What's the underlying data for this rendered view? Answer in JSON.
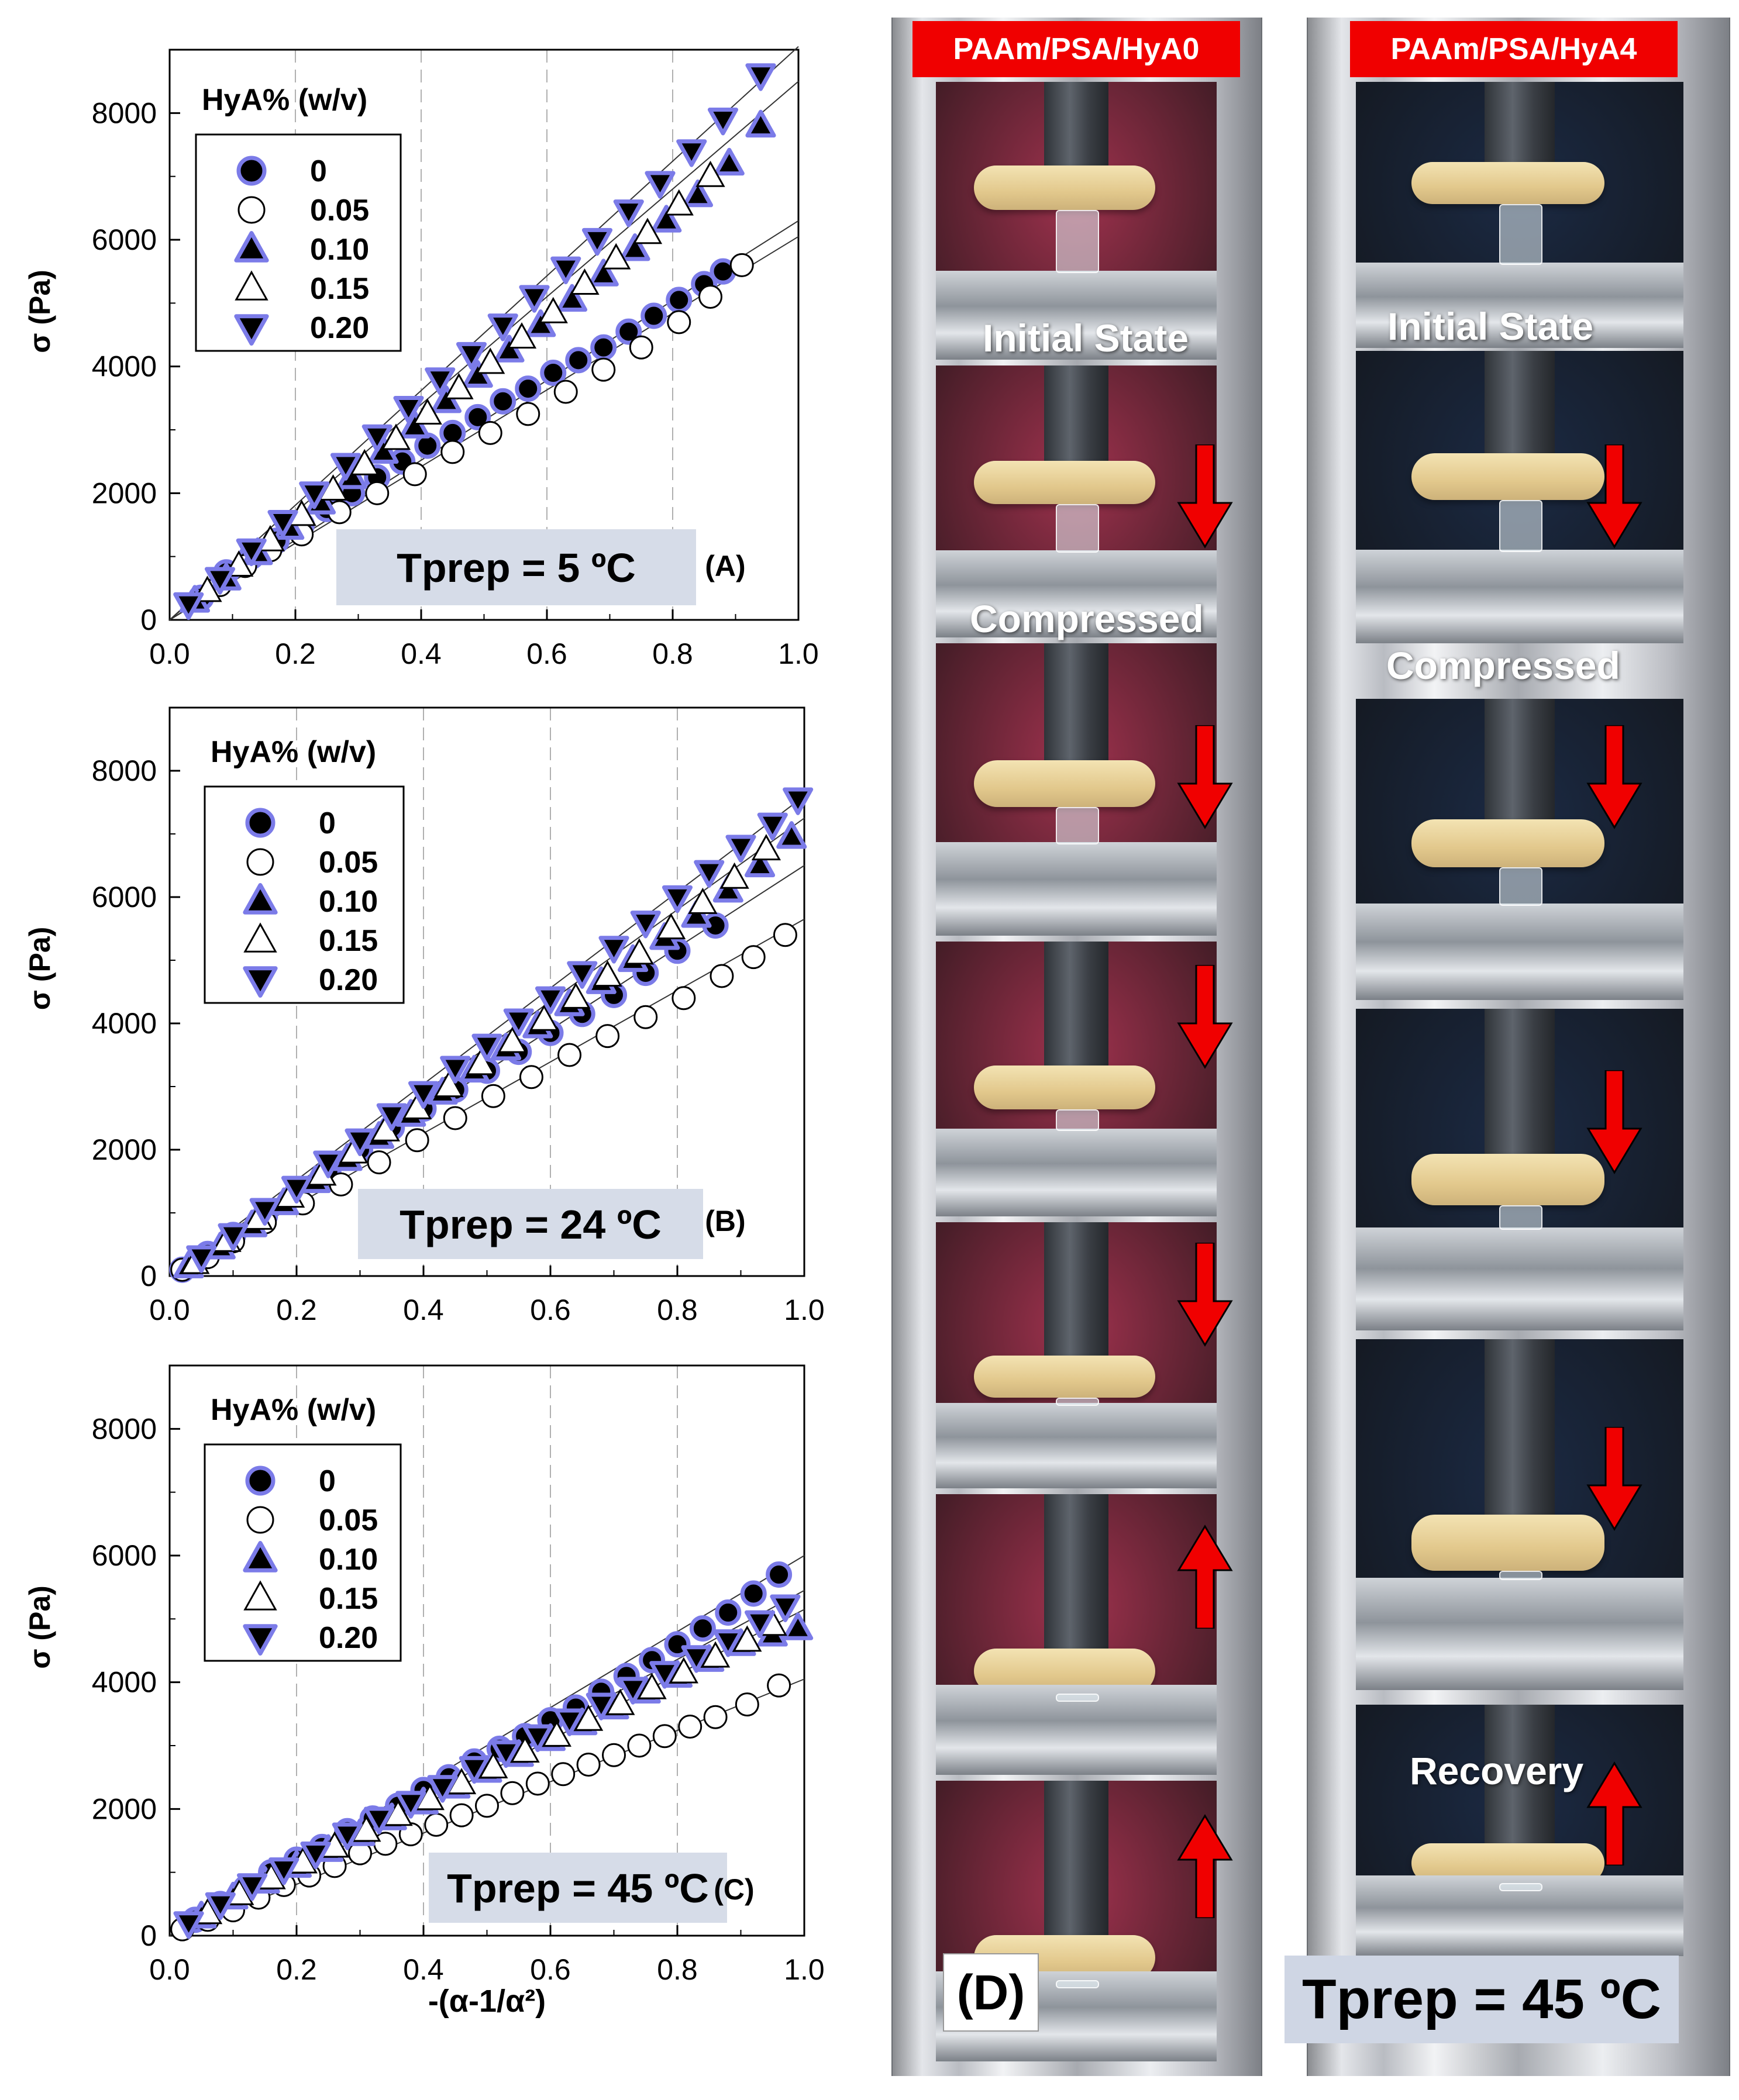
{
  "figure": {
    "legend_title": "HyA% (w/v)",
    "series_labels": [
      "0",
      "0.05",
      "0.10",
      "0.15",
      "0.20"
    ],
    "series_markers": [
      "circle-filled",
      "circle-open",
      "triangle-up-filled",
      "triangle-up-open",
      "triangle-down-filled"
    ],
    "marker_outline_color": "#7b7be8",
    "x_label": "-(α-1/α²)",
    "y_label": "σ (Pa)",
    "panel_label_bg": "#d6dce8"
  },
  "chart_data": [
    {
      "type": "scatter",
      "panel": "(A)",
      "annotation": "Tprep = 5 ºC",
      "xlim": [
        0,
        1.0
      ],
      "ylim": [
        0,
        9000
      ],
      "x_ticks": [
        "0.0",
        "0.2",
        "0.4",
        "0.6",
        "0.8",
        "1.0"
      ],
      "y_ticks": [
        "0",
        "2000",
        "4000",
        "6000",
        "8000"
      ],
      "x_gridlines": [
        0.2,
        0.4,
        0.6,
        0.8
      ],
      "legend_position": "top-left",
      "series": [
        {
          "name": "0",
          "x": [
            0.05,
            0.09,
            0.13,
            0.17,
            0.21,
            0.25,
            0.29,
            0.33,
            0.37,
            0.41,
            0.45,
            0.49,
            0.53,
            0.57,
            0.61,
            0.65,
            0.69,
            0.73,
            0.77,
            0.81,
            0.85,
            0.88
          ],
          "y": [
            350,
            750,
            1000,
            1250,
            1500,
            1750,
            2000,
            2250,
            2500,
            2750,
            2950,
            3200,
            3450,
            3650,
            3900,
            4100,
            4300,
            4550,
            4800,
            5050,
            5300,
            5500
          ]
        },
        {
          "name": "0.05",
          "x": [
            0.08,
            0.12,
            0.16,
            0.21,
            0.27,
            0.33,
            0.39,
            0.45,
            0.51,
            0.57,
            0.63,
            0.69,
            0.75,
            0.81,
            0.86,
            0.91
          ],
          "y": [
            550,
            850,
            1100,
            1350,
            1700,
            2000,
            2300,
            2650,
            2950,
            3250,
            3600,
            3950,
            4300,
            4700,
            5100,
            5600
          ]
        },
        {
          "name": "0.10",
          "x": [
            0.04,
            0.09,
            0.14,
            0.19,
            0.24,
            0.29,
            0.34,
            0.39,
            0.44,
            0.49,
            0.54,
            0.59,
            0.64,
            0.69,
            0.74,
            0.79,
            0.84,
            0.89,
            0.94
          ],
          "y": [
            300,
            650,
            1050,
            1450,
            1850,
            2250,
            2650,
            3050,
            3450,
            3850,
            4250,
            4650,
            5050,
            5450,
            5850,
            6300,
            6700,
            7200,
            7800
          ]
        },
        {
          "name": "0.15",
          "x": [
            0.06,
            0.11,
            0.16,
            0.21,
            0.26,
            0.31,
            0.36,
            0.41,
            0.46,
            0.51,
            0.56,
            0.61,
            0.66,
            0.71,
            0.76,
            0.81,
            0.86
          ],
          "y": [
            450,
            850,
            1250,
            1650,
            2050,
            2450,
            2850,
            3250,
            3650,
            4050,
            4450,
            4850,
            5300,
            5700,
            6100,
            6550,
            7000
          ]
        },
        {
          "name": "0.20",
          "x": [
            0.03,
            0.08,
            0.13,
            0.18,
            0.23,
            0.28,
            0.33,
            0.38,
            0.43,
            0.48,
            0.53,
            0.58,
            0.63,
            0.68,
            0.73,
            0.78,
            0.83,
            0.88,
            0.94
          ],
          "y": [
            250,
            650,
            1100,
            1550,
            2000,
            2450,
            2900,
            3350,
            3800,
            4200,
            4650,
            5100,
            5550,
            6000,
            6450,
            6900,
            7400,
            7900,
            8600
          ]
        }
      ],
      "fit_lines": [
        {
          "x": [
            0.0,
            1.0
          ],
          "y": [
            0,
            9050
          ]
        },
        {
          "x": [
            0.0,
            1.0
          ],
          "y": [
            0,
            8500
          ]
        },
        {
          "x": [
            0.0,
            1.0
          ],
          "y": [
            0,
            6300
          ]
        },
        {
          "x": [
            0.0,
            1.0
          ],
          "y": [
            0,
            6050
          ]
        }
      ]
    },
    {
      "type": "scatter",
      "panel": "(B)",
      "annotation": "Tprep = 24 ºC",
      "xlim": [
        0,
        1.0
      ],
      "ylim": [
        0,
        9000
      ],
      "x_ticks": [
        "0.0",
        "0.2",
        "0.4",
        "0.6",
        "0.8",
        "1.0"
      ],
      "y_ticks": [
        "0",
        "2000",
        "4000",
        "6000",
        "8000"
      ],
      "x_gridlines": [
        0.2,
        0.4,
        0.6,
        0.8
      ],
      "legend_position": "top-left",
      "series": [
        {
          "name": "0",
          "x": [
            0.02,
            0.06,
            0.1,
            0.15,
            0.2,
            0.25,
            0.3,
            0.35,
            0.4,
            0.45,
            0.5,
            0.55,
            0.6,
            0.65,
            0.7,
            0.75,
            0.8,
            0.86
          ],
          "y": [
            100,
            350,
            650,
            950,
            1300,
            1650,
            2000,
            2350,
            2650,
            2950,
            3250,
            3550,
            3850,
            4150,
            4450,
            4800,
            5150,
            5550
          ]
        },
        {
          "name": "0.05",
          "x": [
            0.02,
            0.06,
            0.1,
            0.15,
            0.21,
            0.27,
            0.33,
            0.39,
            0.45,
            0.51,
            0.57,
            0.63,
            0.69,
            0.75,
            0.81,
            0.87,
            0.92,
            0.97
          ],
          "y": [
            100,
            300,
            550,
            850,
            1150,
            1450,
            1800,
            2150,
            2500,
            2850,
            3150,
            3500,
            3800,
            4100,
            4400,
            4750,
            5050,
            5400
          ]
        },
        {
          "name": "0.10",
          "x": [
            0.03,
            0.08,
            0.13,
            0.18,
            0.23,
            0.28,
            0.33,
            0.38,
            0.43,
            0.48,
            0.53,
            0.58,
            0.63,
            0.68,
            0.73,
            0.78,
            0.83,
            0.88,
            0.93,
            0.98
          ],
          "y": [
            150,
            450,
            800,
            1150,
            1500,
            1850,
            2200,
            2550,
            2900,
            3250,
            3600,
            3950,
            4300,
            4650,
            5000,
            5350,
            5700,
            6100,
            6500,
            6950
          ]
        },
        {
          "name": "0.15",
          "x": [
            0.04,
            0.09,
            0.14,
            0.19,
            0.24,
            0.29,
            0.34,
            0.39,
            0.44,
            0.49,
            0.54,
            0.59,
            0.64,
            0.69,
            0.74,
            0.79,
            0.84,
            0.89,
            0.94
          ],
          "y": [
            200,
            550,
            900,
            1250,
            1600,
            1950,
            2300,
            2650,
            3000,
            3350,
            3700,
            4050,
            4400,
            4750,
            5100,
            5500,
            5900,
            6300,
            6750
          ]
        },
        {
          "name": "0.20",
          "x": [
            0.05,
            0.1,
            0.15,
            0.2,
            0.25,
            0.3,
            0.35,
            0.4,
            0.45,
            0.5,
            0.55,
            0.6,
            0.65,
            0.7,
            0.75,
            0.8,
            0.85,
            0.9,
            0.95,
            0.99
          ],
          "y": [
            300,
            650,
            1050,
            1400,
            1800,
            2150,
            2550,
            2900,
            3300,
            3650,
            4050,
            4400,
            4800,
            5200,
            5600,
            6000,
            6400,
            6800,
            7150,
            7550
          ]
        }
      ],
      "fit_lines": [
        {
          "x": [
            0.0,
            1.0
          ],
          "y": [
            0,
            7600
          ]
        },
        {
          "x": [
            0.0,
            1.0
          ],
          "y": [
            0,
            7250
          ]
        },
        {
          "x": [
            0.0,
            1.0
          ],
          "y": [
            0,
            6500
          ]
        },
        {
          "x": [
            0.0,
            1.0
          ],
          "y": [
            0,
            5650
          ]
        }
      ]
    },
    {
      "type": "scatter",
      "panel": "(C)",
      "annotation": "Tprep = 45 ºC",
      "xlim": [
        0,
        1.0
      ],
      "ylim": [
        0,
        9000
      ],
      "x_ticks": [
        "0.0",
        "0.2",
        "0.4",
        "0.6",
        "0.8",
        "1.0"
      ],
      "y_ticks": [
        "0",
        "2000",
        "4000",
        "6000",
        "8000"
      ],
      "x_gridlines": [
        0.2,
        0.4,
        0.6,
        0.8
      ],
      "legend_position": "top-left",
      "series": [
        {
          "name": "0",
          "x": [
            0.04,
            0.08,
            0.12,
            0.16,
            0.2,
            0.24,
            0.28,
            0.32,
            0.36,
            0.4,
            0.44,
            0.48,
            0.52,
            0.56,
            0.6,
            0.64,
            0.68,
            0.72,
            0.76,
            0.8,
            0.84,
            0.88,
            0.92,
            0.96
          ],
          "y": [
            250,
            500,
            750,
            1000,
            1200,
            1400,
            1650,
            1850,
            2050,
            2300,
            2500,
            2750,
            2950,
            3150,
            3400,
            3600,
            3850,
            4100,
            4350,
            4600,
            4850,
            5100,
            5400,
            5700
          ]
        },
        {
          "name": "0.05",
          "x": [
            0.02,
            0.06,
            0.1,
            0.14,
            0.18,
            0.22,
            0.26,
            0.3,
            0.34,
            0.38,
            0.42,
            0.46,
            0.5,
            0.54,
            0.58,
            0.62,
            0.66,
            0.7,
            0.74,
            0.78,
            0.82,
            0.86,
            0.91,
            0.96
          ],
          "y": [
            100,
            250,
            400,
            600,
            800,
            950,
            1100,
            1300,
            1450,
            1600,
            1750,
            1900,
            2050,
            2250,
            2400,
            2550,
            2700,
            2850,
            3000,
            3150,
            3300,
            3450,
            3650,
            3950
          ]
        },
        {
          "name": "0.10",
          "x": [
            0.05,
            0.1,
            0.15,
            0.2,
            0.25,
            0.3,
            0.35,
            0.4,
            0.45,
            0.5,
            0.55,
            0.6,
            0.65,
            0.7,
            0.75,
            0.8,
            0.85,
            0.9,
            0.95,
            0.99
          ],
          "y": [
            300,
            600,
            850,
            1100,
            1350,
            1600,
            1850,
            2100,
            2350,
            2600,
            2850,
            3100,
            3350,
            3600,
            3850,
            4100,
            4350,
            4600,
            4750,
            4850
          ]
        },
        {
          "name": "0.15",
          "x": [
            0.06,
            0.11,
            0.16,
            0.21,
            0.26,
            0.31,
            0.36,
            0.41,
            0.46,
            0.51,
            0.56,
            0.61,
            0.66,
            0.71,
            0.76,
            0.81,
            0.86,
            0.91,
            0.95
          ],
          "y": [
            350,
            650,
            900,
            1150,
            1400,
            1650,
            1900,
            2150,
            2400,
            2650,
            2900,
            3150,
            3400,
            3650,
            3900,
            4150,
            4400,
            4650,
            4900
          ]
        },
        {
          "name": "0.20",
          "x": [
            0.03,
            0.08,
            0.13,
            0.18,
            0.23,
            0.28,
            0.33,
            0.38,
            0.43,
            0.48,
            0.53,
            0.58,
            0.63,
            0.68,
            0.73,
            0.78,
            0.83,
            0.88,
            0.93,
            0.97
          ],
          "y": [
            200,
            500,
            800,
            1050,
            1300,
            1600,
            1850,
            2100,
            2350,
            2650,
            2900,
            3150,
            3400,
            3650,
            3900,
            4150,
            4400,
            4650,
            4950,
            5200
          ]
        }
      ],
      "fit_lines": [
        {
          "x": [
            0.0,
            1.0
          ],
          "y": [
            0,
            6000
          ]
        },
        {
          "x": [
            0.0,
            1.0
          ],
          "y": [
            0,
            5450
          ]
        },
        {
          "x": [
            0.0,
            1.0
          ],
          "y": [
            0,
            5150
          ]
        },
        {
          "x": [
            0.0,
            1.0
          ],
          "y": [
            0,
            4050
          ]
        }
      ]
    }
  ],
  "photo_panel": {
    "label": "(D)",
    "tprep": "Tprep = 45 ºC",
    "arrow_color": "#f00000",
    "left_title": "PAAm/PSA/HyA0",
    "right_title": "PAAm/PSA/HyA4",
    "left_captions": [
      "Initial State",
      "Compressed"
    ],
    "right_captions": [
      "Initial State",
      "Compressed",
      "Recovery"
    ],
    "left_bg": "#a0324e",
    "right_bg": "#1b2a44",
    "left_arrows": [
      "down",
      "down",
      "down",
      "down",
      "up",
      "up"
    ],
    "right_arrows": [
      "down",
      "down",
      "down",
      "down",
      "up"
    ]
  }
}
